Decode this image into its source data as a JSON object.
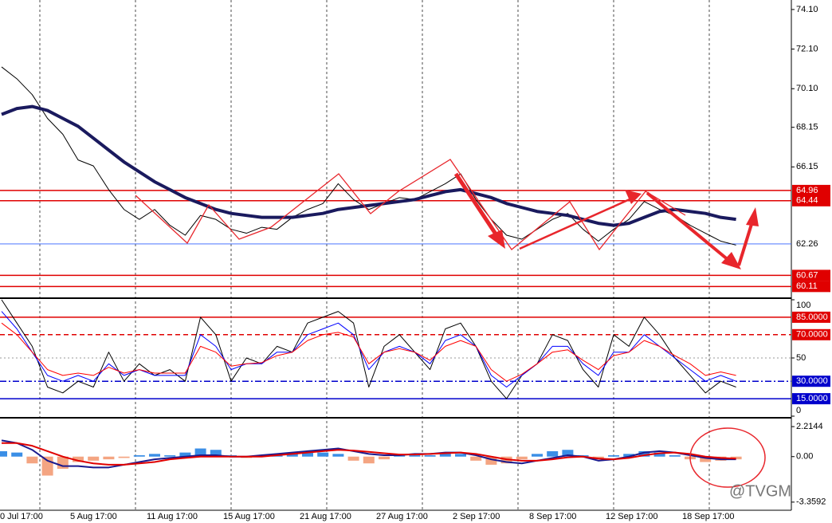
{
  "chart_data": [
    {
      "type": "line",
      "panel": "price",
      "categories": [
        "0 Jul 17:00",
        null,
        null,
        null,
        null,
        "5 Aug 17:00",
        null,
        null,
        null,
        null,
        "11 Aug 17:00",
        null,
        null,
        null,
        null,
        "15 Aug 17:00",
        null,
        null,
        null,
        null,
        "21 Aug 17:00",
        null,
        null,
        null,
        null,
        "27 Aug 17:00",
        null,
        null,
        null,
        null,
        "2 Sep 17:00",
        null,
        null,
        null,
        null,
        "8 Sep 17:00",
        null,
        null,
        null,
        null,
        "12 Sep 17:00",
        null,
        null,
        null,
        null,
        "18 Sep 17:00",
        null,
        null,
        null
      ],
      "series": [
        {
          "color": "#000000",
          "width": 1,
          "values": [
            71.2,
            70.6,
            69.8,
            68.6,
            67.8,
            66.5,
            66.2,
            65.0,
            64.0,
            63.5,
            64.0,
            63.2,
            62.7,
            63.7,
            63.5,
            63.0,
            62.8,
            63.1,
            63.0,
            63.6,
            64.0,
            64.3,
            65.3,
            64.5,
            64.0,
            64.3,
            64.6,
            64.5,
            64.9,
            65.3,
            65.8,
            64.5,
            63.5,
            62.7,
            62.5,
            63.0,
            63.5,
            63.8,
            63.0,
            62.4,
            63.0,
            63.5,
            64.4,
            64.0,
            63.7,
            63.2,
            62.8,
            62.4,
            62.2
          ]
        },
        {
          "color": "#1a1a5e",
          "width": 4,
          "values": [
            68.8,
            69.1,
            69.2,
            69.0,
            68.6,
            68.2,
            67.6,
            67.0,
            66.4,
            65.9,
            65.4,
            65.0,
            64.6,
            64.3,
            64.0,
            63.8,
            63.7,
            63.6,
            63.6,
            63.6,
            63.7,
            63.8,
            64.0,
            64.1,
            64.2,
            64.3,
            64.4,
            64.5,
            64.7,
            64.9,
            65.0,
            64.8,
            64.6,
            64.3,
            64.1,
            63.9,
            63.8,
            63.7,
            63.5,
            63.3,
            63.2,
            63.3,
            63.6,
            63.9,
            64.0,
            63.9,
            63.8,
            63.6,
            63.5
          ]
        }
      ],
      "ylim": [
        59.6,
        74.58
      ],
      "yticks": [
        {
          "value": 74.1,
          "label": "74.10"
        },
        {
          "value": 72.1,
          "label": "72.10"
        },
        {
          "value": 70.1,
          "label": "70.10"
        },
        68.15,
        66.15
      ],
      "levels": [
        {
          "value": 64.96,
          "color": "#e00000",
          "style": "solid",
          "box": true
        },
        {
          "value": 64.44,
          "color": "#e00000",
          "style": "solid",
          "box": true
        },
        {
          "value": 62.26,
          "color": "#3060ff",
          "style": "thin",
          "box": false
        },
        {
          "value": 60.67,
          "color": "#e00000",
          "style": "solid",
          "box": true
        },
        {
          "value": 60.11,
          "color": "#e00000",
          "style": "solid",
          "box": true
        }
      ]
    },
    {
      "type": "line",
      "panel": "stochastic",
      "series": [
        {
          "color": "#000000",
          "width": 1,
          "values": [
            100,
            80,
            60,
            25,
            20,
            30,
            25,
            55,
            30,
            45,
            35,
            40,
            30,
            85,
            70,
            30,
            50,
            45,
            60,
            55,
            80,
            85,
            90,
            80,
            25,
            60,
            70,
            55,
            40,
            75,
            80,
            60,
            30,
            15,
            35,
            45,
            70,
            65,
            40,
            25,
            70,
            60,
            85,
            70,
            50,
            35,
            20,
            30,
            25
          ]
        },
        {
          "color": "#0000ff",
          "width": 1,
          "values": [
            90,
            75,
            55,
            35,
            30,
            35,
            30,
            45,
            35,
            40,
            35,
            35,
            35,
            70,
            60,
            40,
            45,
            45,
            55,
            55,
            70,
            75,
            80,
            70,
            40,
            55,
            60,
            55,
            45,
            65,
            70,
            60,
            35,
            25,
            35,
            45,
            60,
            60,
            45,
            35,
            55,
            55,
            70,
            60,
            50,
            40,
            30,
            35,
            30
          ]
        },
        {
          "color": "#ff0000",
          "width": 1,
          "values": [
            80,
            70,
            55,
            40,
            35,
            37,
            35,
            42,
            37,
            40,
            37,
            37,
            37,
            60,
            55,
            43,
            45,
            46,
            52,
            55,
            65,
            70,
            72,
            68,
            45,
            55,
            58,
            55,
            48,
            60,
            65,
            60,
            40,
            30,
            36,
            45,
            55,
            57,
            48,
            40,
            52,
            55,
            65,
            60,
            52,
            45,
            35,
            38,
            35
          ]
        }
      ],
      "ylim": [
        0,
        100
      ],
      "yticks": [
        100,
        50,
        0
      ],
      "levels": [
        {
          "value": 85,
          "label": "85.0000",
          "color": "#e00000",
          "style": "solid",
          "box": true
        },
        {
          "value": 70,
          "label": "70.0000",
          "color": "#e00000",
          "style": "dash",
          "box": true
        },
        {
          "value": 30,
          "label": "30.0000",
          "color": "#0000cc",
          "style": "dashdot",
          "box": true
        },
        {
          "value": 15,
          "label": "15.0000",
          "color": "#0000cc",
          "style": "solid",
          "box": true
        }
      ]
    },
    {
      "type": "macd",
      "panel": "macd",
      "histogram": {
        "pos_color": "#3a8ee6",
        "neg_color": "#f4a582",
        "values": [
          0.4,
          0.3,
          -0.5,
          -1.4,
          -0.9,
          -0.4,
          -0.3,
          -0.2,
          -0.1,
          0.1,
          0.2,
          0.1,
          0.3,
          0.6,
          0.5,
          0.1,
          -0.1,
          0.1,
          0.2,
          0.3,
          0.4,
          0.3,
          0.2,
          -0.3,
          -0.5,
          -0.2,
          0.1,
          0.2,
          0.1,
          0.3,
          0.2,
          -0.3,
          -0.6,
          -0.5,
          -0.2,
          0.2,
          0.4,
          0.5,
          0.1,
          -0.2,
          0.1,
          0.2,
          0.4,
          0.3,
          0.1,
          -0.2,
          -0.4,
          -0.3,
          -0.2
        ]
      },
      "series": [
        {
          "color": "#1a1a8e",
          "width": 2,
          "values": [
            1.2,
            1.0,
            0.5,
            -0.3,
            -0.7,
            -0.7,
            -0.8,
            -0.8,
            -0.6,
            -0.4,
            -0.2,
            -0.1,
            0.0,
            0.1,
            0.1,
            0.0,
            0.0,
            0.1,
            0.2,
            0.3,
            0.4,
            0.5,
            0.6,
            0.4,
            0.2,
            0.1,
            0.1,
            0.2,
            0.2,
            0.3,
            0.3,
            0.1,
            -0.2,
            -0.4,
            -0.5,
            -0.3,
            -0.1,
            0.1,
            0.0,
            -0.3,
            -0.2,
            0.0,
            0.3,
            0.4,
            0.3,
            0.1,
            -0.1,
            -0.2,
            -0.2
          ]
        },
        {
          "color": "#e00000",
          "width": 2,
          "values": [
            1.0,
            1.0,
            0.8,
            0.4,
            0.0,
            -0.3,
            -0.5,
            -0.6,
            -0.6,
            -0.5,
            -0.4,
            -0.2,
            -0.1,
            0.0,
            0.0,
            0.0,
            0.0,
            0.0,
            0.1,
            0.2,
            0.3,
            0.4,
            0.5,
            0.45,
            0.35,
            0.25,
            0.15,
            0.15,
            0.2,
            0.25,
            0.3,
            0.2,
            0.0,
            -0.2,
            -0.3,
            -0.3,
            -0.2,
            -0.05,
            0.0,
            -0.15,
            -0.2,
            -0.1,
            0.1,
            0.25,
            0.3,
            0.2,
            0.0,
            -0.1,
            -0.15
          ]
        }
      ],
      "ylim": [
        -3.9,
        2.75
      ],
      "yticks": [
        2.2144,
        {
          "value": 0,
          "label": "0.00"
        },
        -3.3592
      ]
    }
  ],
  "watermark": "@TVGM"
}
